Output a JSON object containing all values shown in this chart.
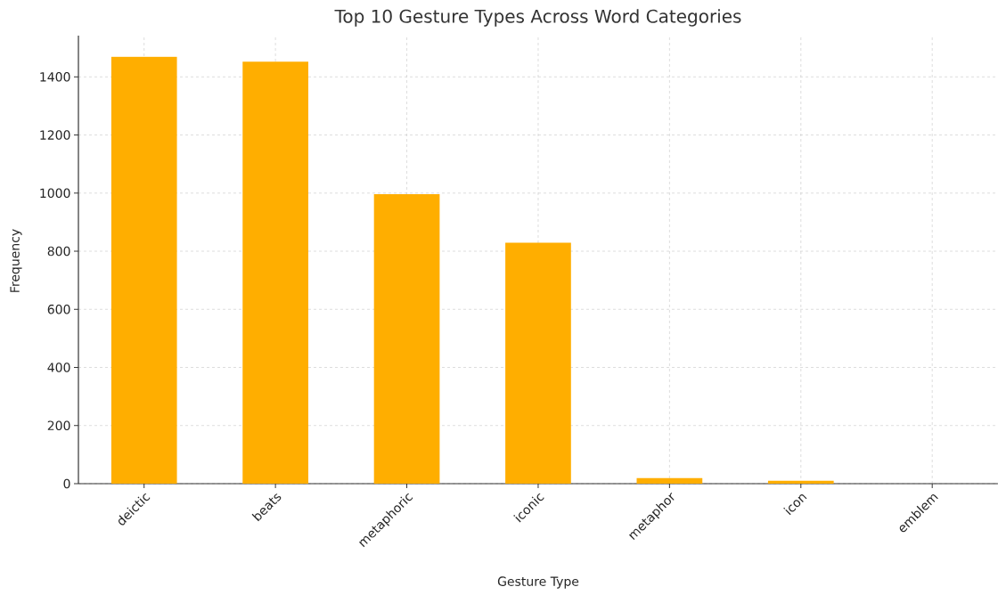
{
  "chart_data": {
    "type": "bar",
    "title": "Top 10 Gesture Types Across Word Categories",
    "xlabel": "Gesture Type",
    "ylabel": "Frequency",
    "categories": [
      "deictic",
      "beats",
      "metaphoric",
      "iconic",
      "metaphor",
      "icon",
      "emblem"
    ],
    "values": [
      1469,
      1452,
      996,
      829,
      19,
      10,
      null
    ],
    "color": "#ffae00",
    "ylim": [
      0,
      1542
    ],
    "yticks": [
      0,
      200,
      400,
      600,
      800,
      1000,
      1200,
      1400
    ],
    "grid": true
  }
}
